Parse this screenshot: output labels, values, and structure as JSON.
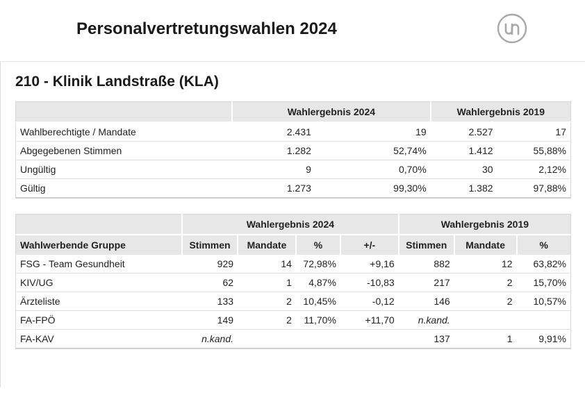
{
  "header": {
    "title": "Personalvertretungswahlen 2024",
    "logo_icon": "un-logo-icon"
  },
  "section": {
    "title": "210 - Klinik Landstraße (KLA)"
  },
  "summary": {
    "group_2024": "Wahlergebnis 2024",
    "group_2019": "Wahlergebnis 2019",
    "rows": [
      {
        "label": "Wahlberechtigte / Mandate",
        "v24": "2.431",
        "p24": "19",
        "v19": "2.527",
        "p19": "17"
      },
      {
        "label": "Abgegebenen Stimmen",
        "v24": "1.282",
        "p24": "52,74%",
        "v19": "1.412",
        "p19": "55,88%"
      },
      {
        "label": "Ungültig",
        "v24": "9",
        "p24": "0,70%",
        "v19": "30",
        "p19": "2,12%"
      },
      {
        "label": "Gültig",
        "v24": "1.273",
        "p24": "99,30%",
        "v19": "1.382",
        "p19": "97,88%"
      }
    ]
  },
  "results": {
    "group_2024": "Wahlergebnis 2024",
    "group_2019": "Wahlergebnis 2019",
    "columns": {
      "group": "Wahlwerbende Gruppe",
      "stimmen24": "Stimmen",
      "mandate24": "Mandate",
      "pct24": "%",
      "diff": "+/-",
      "stimmen19": "Stimmen",
      "mandate19": "Mandate",
      "pct19": "%"
    },
    "rows": [
      {
        "group": "FSG - Team Gesundheit",
        "s24": "929",
        "m24": "14",
        "p24": "72,98%",
        "d": "+9,16",
        "s19": "882",
        "m19": "12",
        "p19": "63,82%"
      },
      {
        "group": "KIV/UG",
        "s24": "62",
        "m24": "1",
        "p24": "4,87%",
        "d": "-10,83",
        "s19": "217",
        "m19": "2",
        "p19": "15,70%"
      },
      {
        "group": "Ärzteliste",
        "s24": "133",
        "m24": "2",
        "p24": "10,45%",
        "d": "-0,12",
        "s19": "146",
        "m19": "2",
        "p19": "10,57%"
      },
      {
        "group": "FA-FPÖ",
        "s24": "149",
        "m24": "2",
        "p24": "11,70%",
        "d": "+11,70",
        "s19": "n.kand.",
        "m19": "",
        "p19": ""
      },
      {
        "group": "FA-KAV",
        "s24": "n.kand.",
        "m24": "",
        "p24": "",
        "d": "",
        "s19": "137",
        "m19": "1",
        "p19": "9,91%"
      }
    ]
  }
}
